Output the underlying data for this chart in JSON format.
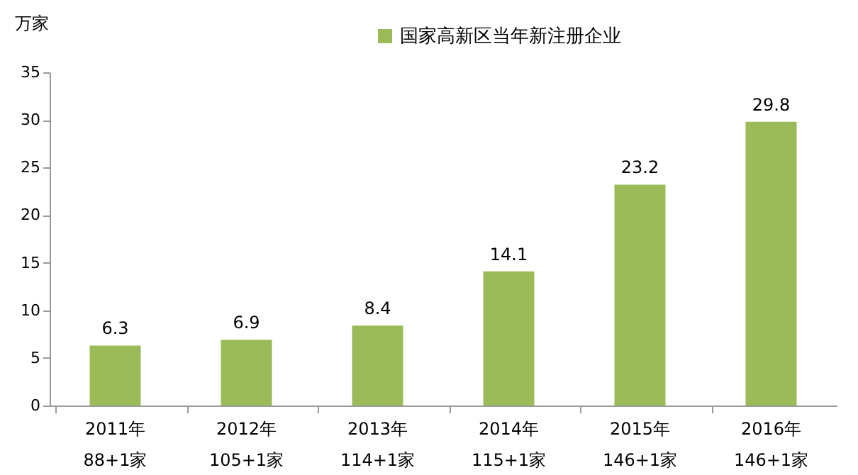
{
  "chart_data": {
    "type": "bar",
    "ylabel": "万家",
    "categories": [
      "2011年\n88+1家",
      "2012年\n105+1家",
      "2013年\n114+1家",
      "2014年\n115+1家",
      "2015年\n146+1家",
      "2016年\n146+1家"
    ],
    "series": [
      {
        "name": "国家高新区当年新注册企业",
        "color": "#9bbb59",
        "values": [
          6.3,
          6.9,
          8.4,
          14.1,
          23.2,
          29.8
        ]
      }
    ],
    "ylim": [
      0,
      35
    ],
    "yticks": [
      0,
      5,
      10,
      15,
      20,
      25,
      30,
      35
    ],
    "grid": false,
    "legend": "top",
    "data_labels": true
  }
}
